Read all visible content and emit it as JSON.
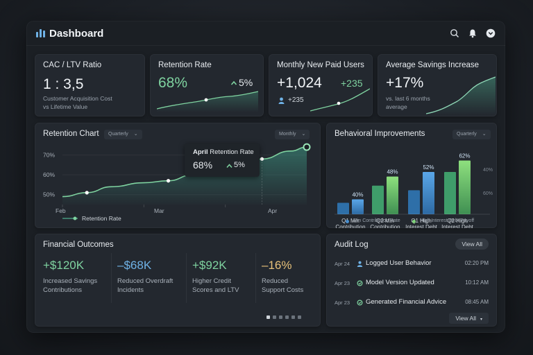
{
  "header": {
    "title": "Dashboard",
    "icons": [
      "search-icon",
      "bell-icon",
      "chevron-down-icon"
    ]
  },
  "kpis": {
    "cac_ltv": {
      "title": "CAC / LTV Ratio",
      "value": "1 : 3,5",
      "sub1": "Customer Acquisition Cost",
      "sub2": "vs Lifetime Value"
    },
    "retention": {
      "title": "Retention Rate",
      "value": "68%",
      "delta": "5%"
    },
    "new_users": {
      "title": "Monthly New Paid Users",
      "value": "+1,024",
      "delta": "+235",
      "sub": "+235"
    },
    "savings": {
      "title": "Average Savings Increase",
      "value": "+17%",
      "sub1": "vs. last 6 months",
      "sub2": "average"
    }
  },
  "retention_chart": {
    "title": "Retention Chart",
    "filter1": "Quarterly",
    "filter2": "Monthly",
    "tooltip": {
      "month": "April",
      "label": "Retention Rate",
      "value": "68%",
      "delta": "5%"
    },
    "legend": "Retention Rate"
  },
  "behavioral": {
    "title": "Behavioral Improvements",
    "filter": "Quarterly",
    "legend1": "Min Contribution Rate",
    "legend2": "High Interest Debt Payoff"
  },
  "financial": {
    "title": "Financial Outcomes",
    "items": [
      {
        "value": "+$120K",
        "line1": "Increased Savings",
        "line2": "Contributions",
        "color": "#7fd3a0"
      },
      {
        "value": "–$68K",
        "line1": "Reduced Overdraft",
        "line2": "Incidents",
        "color": "#6fb2e6"
      },
      {
        "value": "+$92K",
        "line1": "Higher Credit",
        "line2": "Scores and LTV",
        "color": "#7fd3a0"
      },
      {
        "value": "–16%",
        "line1": "Reduced",
        "line2": "Support Costs",
        "color": "#e8c27a"
      }
    ]
  },
  "audit": {
    "title": "Audit Log",
    "view_all_top": "View All",
    "view_all_bottom": "View All",
    "rows": [
      {
        "date": "Apr 24",
        "text": "Logged User Behavior",
        "time": "02:20 PM",
        "icon": "user-icon"
      },
      {
        "date": "Apr 23",
        "text": "Model Version Updated",
        "time": "10:12 AM",
        "icon": "refresh-icon"
      },
      {
        "date": "Apr 23",
        "text": "Generated Financial Advice",
        "time": "08:45 AM",
        "icon": "refresh-icon"
      }
    ]
  },
  "chart_data": [
    {
      "type": "line",
      "title": "Retention Chart",
      "x": [
        "Feb",
        "Mar",
        "Apr"
      ],
      "series": [
        {
          "name": "Retention Rate",
          "points": [
            [
              0.0,
              49.0
            ],
            [
              0.3,
              51.0
            ],
            [
              0.6,
              54.0
            ],
            [
              1.0,
              56.0
            ],
            [
              1.3,
              57.0
            ],
            [
              1.6,
              60.0
            ],
            [
              2.0,
              61.0
            ],
            [
              2.2,
              65.0
            ],
            [
              2.45,
              68.0
            ],
            [
              2.8,
              72.0
            ],
            [
              3.0,
              74.0
            ]
          ]
        }
      ],
      "yticks": [
        "50%",
        "60%",
        "70%"
      ],
      "ylim": [
        45,
        73
      ],
      "grid": true,
      "legend": "bottom-left"
    },
    {
      "type": "bar",
      "title": "Behavioral Improvements",
      "categories": [
        "Q1 Min Contribution",
        "Q2 Min Contribution",
        "Q1 High Interest Debt",
        "Q2 High Interest Debt"
      ],
      "series": [
        {
          "name": "Min Contribution Rate",
          "values": [
            25,
            40,
            36,
            52
          ]
        },
        {
          "name": "High Interest Debt Payoff",
          "values": [
            28,
            48,
            52,
            62
          ]
        }
      ],
      "data_labels": [
        "40%",
        "48%",
        "52%",
        "62%"
      ],
      "yticks": [
        "40%",
        "60%"
      ],
      "ylim": [
        15,
        72
      ],
      "legend": "bottom"
    }
  ]
}
